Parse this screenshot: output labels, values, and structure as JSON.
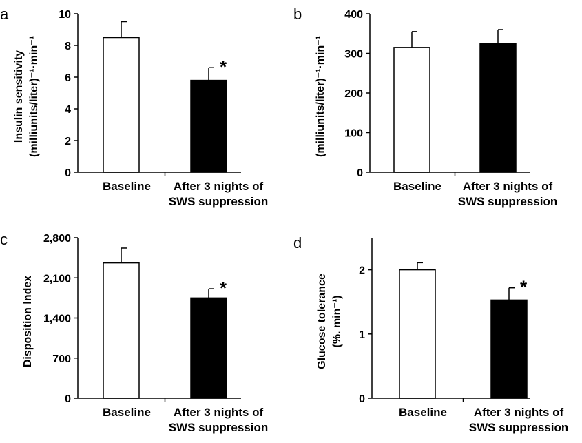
{
  "chart_data": [
    {
      "panel_letter": "a",
      "type": "bar",
      "categories": [
        [
          "Baseline"
        ],
        [
          "After 3 nights of",
          "SWS suppression"
        ]
      ],
      "values": [
        8.5,
        5.8
      ],
      "error": [
        1.0,
        0.8
      ],
      "significance": [
        "",
        "*"
      ],
      "bar_fill": [
        "#ffffff",
        "#000000"
      ],
      "ylabel_lines": [
        "Insulin sensitivity",
        "(milliunits/liter)⁻¹·min⁻¹"
      ],
      "ylim": [
        0,
        10
      ],
      "yticks": [
        0,
        2,
        4,
        6,
        8,
        10
      ],
      "ytick_labels": [
        "0",
        "2",
        "4",
        "6",
        "8",
        "10"
      ],
      "grid": false,
      "legend": "none"
    },
    {
      "panel_letter": "b",
      "type": "bar",
      "categories": [
        [
          "Baseline"
        ],
        [
          "After 3 nights of",
          "SWS suppression"
        ]
      ],
      "values": [
        315,
        325
      ],
      "error": [
        40,
        35
      ],
      "significance": [
        "",
        ""
      ],
      "bar_fill": [
        "#ffffff",
        "#000000"
      ],
      "ylabel_lines": [
        "(milliunits/liter)⁻¹·min⁻¹"
      ],
      "ylim": [
        0,
        400
      ],
      "yticks": [
        0,
        100,
        200,
        300,
        400
      ],
      "ytick_labels": [
        "0",
        "100",
        "200",
        "300",
        "400"
      ],
      "grid": false,
      "legend": "none"
    },
    {
      "panel_letter": "c",
      "type": "bar",
      "categories": [
        [
          "Baseline"
        ],
        [
          "After 3 nights of",
          "SWS suppression"
        ]
      ],
      "values": [
        2360,
        1750
      ],
      "error": [
        260,
        160
      ],
      "significance": [
        "",
        "*"
      ],
      "bar_fill": [
        "#ffffff",
        "#000000"
      ],
      "ylabel_lines": [
        "Disposition Index"
      ],
      "ylim": [
        0,
        2800
      ],
      "yticks": [
        0,
        700,
        1400,
        2100,
        2800
      ],
      "ytick_labels": [
        "0",
        "700",
        "1,400",
        "2,100",
        "2,800"
      ],
      "grid": false,
      "legend": "none"
    },
    {
      "panel_letter": "d",
      "type": "bar",
      "categories": [
        [
          "Baseline"
        ],
        [
          "After 3 nights of",
          "SWS suppression"
        ]
      ],
      "values": [
        2.0,
        1.53
      ],
      "error": [
        0.11,
        0.19
      ],
      "significance": [
        "",
        "*"
      ],
      "bar_fill": [
        "#ffffff",
        "#000000"
      ],
      "ylabel_lines": [
        "Glucose tolerance",
        "(%. min⁻¹)"
      ],
      "ylim": [
        0,
        2.5
      ],
      "yticks": [
        0,
        1,
        2
      ],
      "ytick_labels": [
        "0",
        "1",
        "2"
      ],
      "grid": false,
      "legend": "none"
    }
  ]
}
